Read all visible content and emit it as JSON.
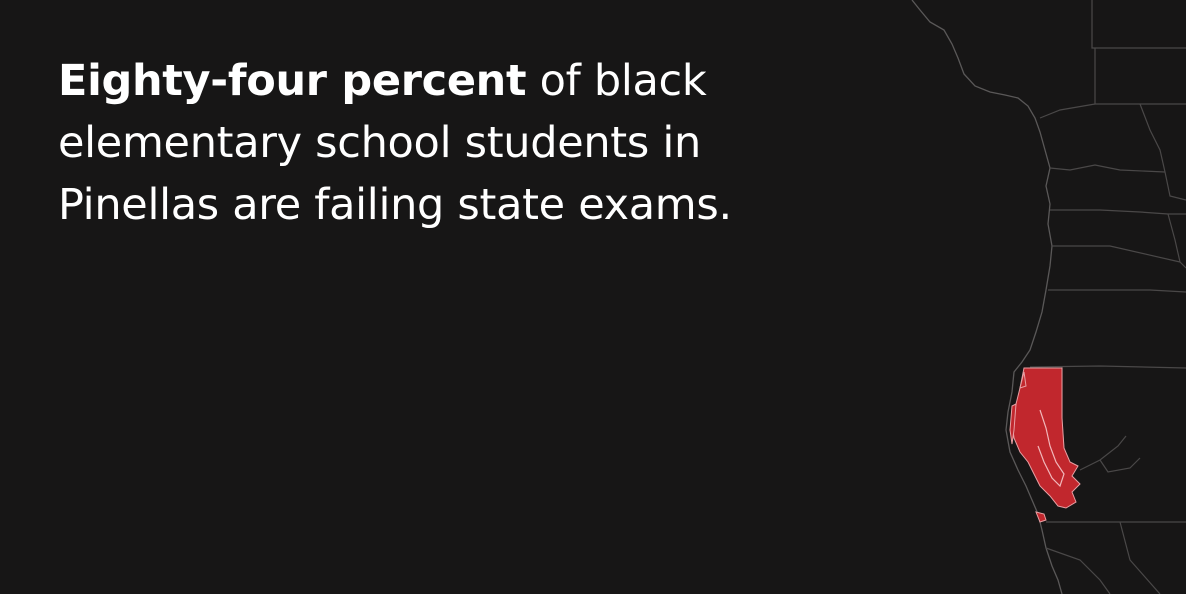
{
  "headline": {
    "lead": "Eighty-four percent",
    "rest": " of black elementary school students in Pinellas are failing state exams."
  },
  "map": {
    "highlighted_county": "Pinellas",
    "highlight_color": "#c1272d",
    "background_color": "#171616",
    "boundary_color": "#4a4848"
  }
}
